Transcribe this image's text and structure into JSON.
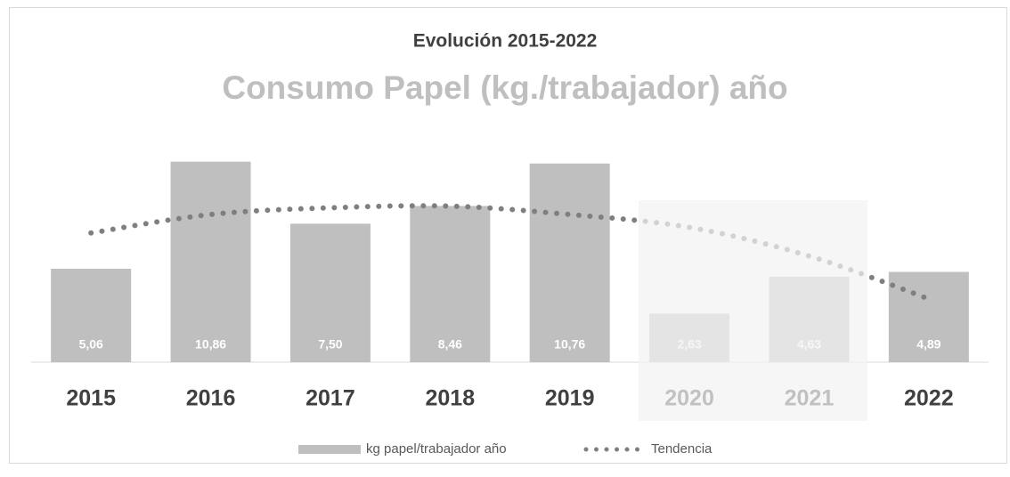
{
  "chart_data": {
    "type": "bar",
    "title": "Evolución 2015-2022",
    "subtitle": "Consumo Papel (kg./trabajador) año",
    "categories": [
      "2015",
      "2016",
      "2017",
      "2018",
      "2019",
      "2020",
      "2021",
      "2022"
    ],
    "series": [
      {
        "name": "kg papel/trabajador año",
        "type": "bar",
        "color": "#bfbfbf",
        "values": [
          5.06,
          10.86,
          7.5,
          8.46,
          10.76,
          2.63,
          4.63,
          4.89
        ],
        "value_labels": [
          "5,06",
          "10,86",
          "7,50",
          "8,46",
          "10,76",
          "2,63",
          "4,63",
          "4,89"
        ]
      },
      {
        "name": "Tendencia",
        "type": "line",
        "style": "dotted",
        "color": "#7f7f7f",
        "values": [
          7.0,
          8.0,
          8.36,
          8.45,
          8.0,
          7.3,
          5.75,
          3.43
        ]
      }
    ],
    "ylim": [
      0,
      12
    ],
    "legend": "bottom"
  }
}
